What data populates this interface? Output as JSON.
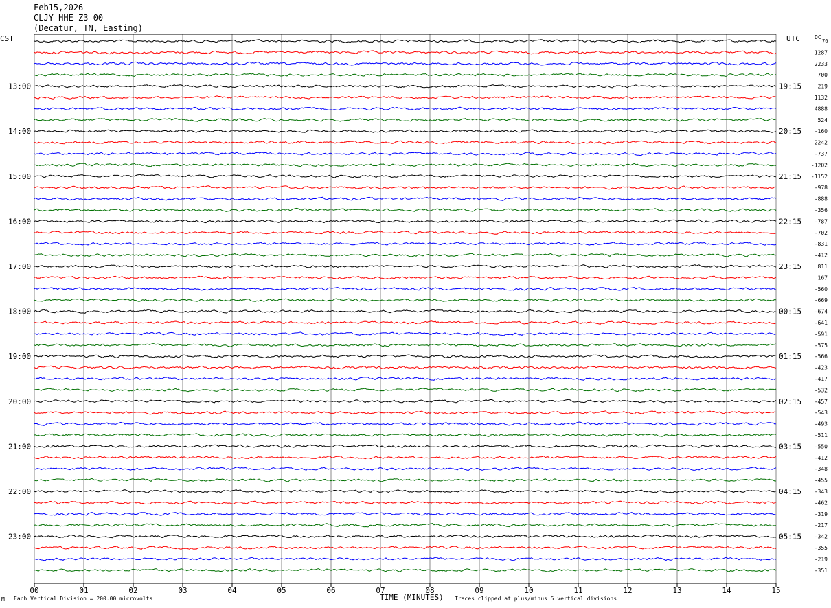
{
  "header": {
    "date": "Feb15,2026",
    "station": "CLJY HHE Z3 00",
    "location": "(Decatur, TN, Easting)"
  },
  "corner_labels": {
    "left": "CST",
    "right": "UTC",
    "dc": "DC",
    "dc_first": "76"
  },
  "footer": {
    "mark": "M",
    "scale": "Each Vertical Division =  200.00 microvolts",
    "clip": "Traces clipped at plus/minus 5 vertical divisions"
  },
  "colors": [
    "#000000",
    "#ff0000",
    "#0000ff",
    "#007000"
  ],
  "chart_data": {
    "type": "line",
    "title": "",
    "xlabel": "TIME (MINUTES)",
    "ylabel": "",
    "xlim": [
      0,
      15
    ],
    "x_ticks": [
      "00",
      "01",
      "02",
      "03",
      "04",
      "05",
      "06",
      "07",
      "08",
      "09",
      "10",
      "11",
      "12",
      "13",
      "14",
      "15"
    ],
    "trace_count": 48,
    "left_hour_labels": [
      "13:00",
      "14:00",
      "15:00",
      "16:00",
      "17:00",
      "18:00",
      "19:00",
      "20:00",
      "21:00",
      "22:00",
      "23:00"
    ],
    "right_hour_labels": [
      "19:15",
      "20:15",
      "21:15",
      "22:15",
      "23:15",
      "00:15",
      "01:15",
      "02:15",
      "03:15",
      "04:15",
      "05:15"
    ],
    "dc_offsets": [
      "1287",
      "2233",
      "700",
      "219",
      "1132",
      "4888",
      "524",
      "-160",
      "2242",
      "-737",
      "-1202",
      "-1152",
      "-978",
      "-888",
      "-356",
      "-787",
      "-702",
      "-831",
      "-412",
      "811",
      "167",
      "-560",
      "-669",
      "-674",
      "-641",
      "-591",
      "-575",
      "-566",
      "-423",
      "-417",
      "-532",
      "-457",
      "-543",
      "-493",
      "-511",
      "-550",
      "-412",
      "-348",
      "-455",
      "-343",
      "-462",
      "-319",
      "-217",
      "-342",
      "-355",
      "-219",
      "-351"
    ],
    "grid": true
  }
}
